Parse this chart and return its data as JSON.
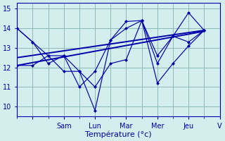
{
  "xlabel": "Température (°c)",
  "bg_color": "#d4eeee",
  "line_color": "#0000aa",
  "grid_color": "#90b8b8",
  "ylim": [
    9.5,
    15.3
  ],
  "xlim": [
    0,
    13
  ],
  "yticks": [
    10,
    11,
    12,
    13,
    14,
    15
  ],
  "xtick_positions": [
    1,
    3,
    5,
    7,
    9,
    11,
    13
  ],
  "xtick_labels": [
    "",
    "Sam",
    "Lun",
    "Mar",
    "Mer",
    "Jeu",
    "V"
  ],
  "minor_xtick_positions": [
    0,
    1,
    2,
    3,
    4,
    5,
    6,
    7,
    8,
    9,
    10,
    11,
    12,
    13
  ],
  "series1_x": [
    0,
    1,
    2,
    3,
    4,
    5,
    6,
    7,
    8,
    9,
    10,
    11,
    12
  ],
  "series1_y": [
    14.0,
    13.3,
    12.6,
    12.6,
    11.0,
    11.8,
    13.4,
    14.35,
    14.4,
    11.2,
    12.2,
    13.1,
    13.9
  ],
  "series2_x": [
    0,
    1,
    2,
    3,
    4,
    5,
    6,
    7,
    8,
    9,
    10,
    11,
    12
  ],
  "series2_y": [
    14.0,
    13.3,
    12.2,
    12.6,
    11.8,
    9.8,
    13.4,
    14.0,
    14.4,
    12.2,
    13.6,
    13.3,
    13.9
  ],
  "series3_x": [
    0,
    1,
    2,
    3,
    4,
    5,
    6,
    7,
    8,
    9,
    10,
    11,
    12
  ],
  "series3_y": [
    12.1,
    12.1,
    12.6,
    11.8,
    11.8,
    11.0,
    12.2,
    12.4,
    14.4,
    12.6,
    13.6,
    14.8,
    13.9
  ],
  "trend1_x": [
    0,
    12
  ],
  "trend1_y": [
    12.1,
    13.85
  ],
  "trend2_x": [
    0,
    12
  ],
  "trend2_y": [
    12.5,
    13.9
  ]
}
